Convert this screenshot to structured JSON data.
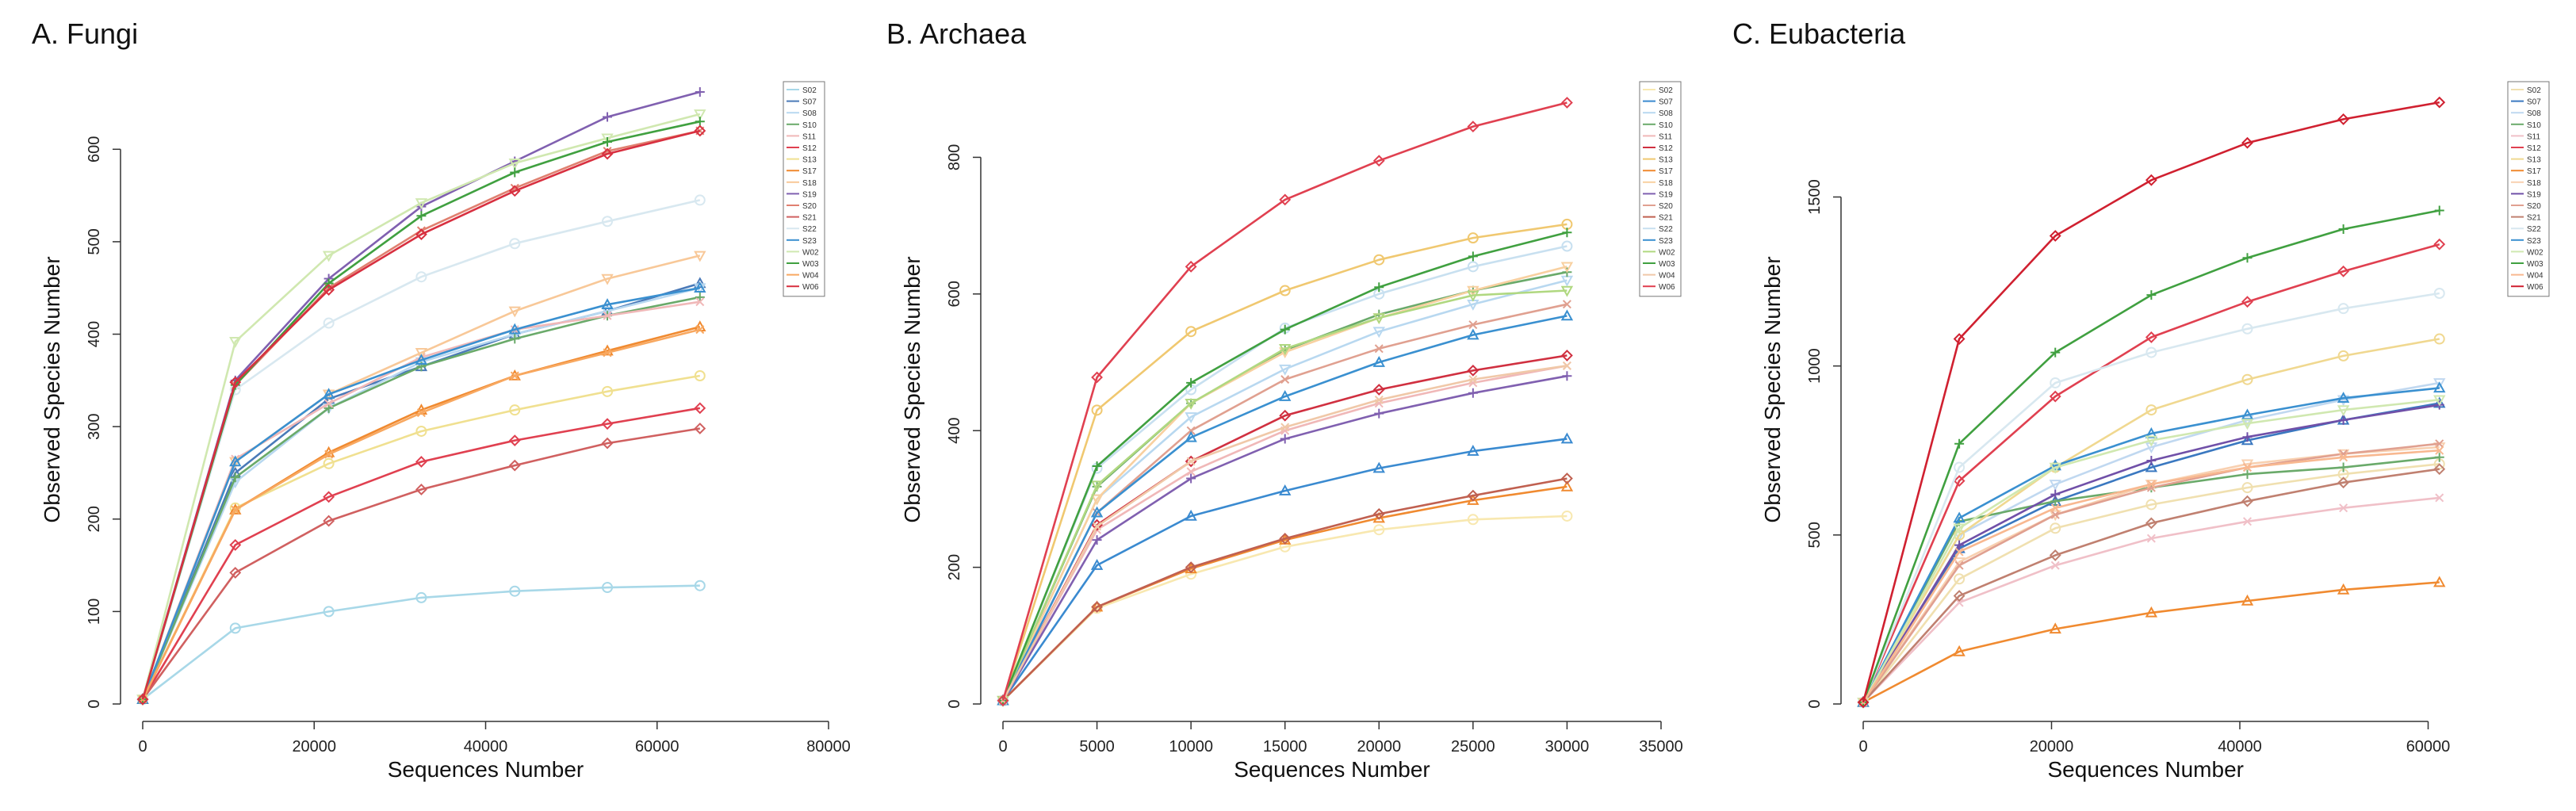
{
  "series_names": [
    "S02",
    "S07",
    "S08",
    "S10",
    "S11",
    "S12",
    "S13",
    "S17",
    "S18",
    "S19",
    "S20",
    "S21",
    "S22",
    "S23",
    "W02",
    "W03",
    "W04",
    "W06"
  ],
  "chart_data": [
    {
      "type": "line",
      "title": "A. Fungi",
      "xlabel": "Sequences Number",
      "ylabel": "Observed Species Number",
      "xlim": [
        0,
        80000
      ],
      "ylim": [
        0,
        680
      ],
      "xticks": [
        0,
        20000,
        40000,
        60000,
        80000
      ],
      "yticks": [
        0,
        100,
        200,
        300,
        400,
        500,
        600
      ],
      "legend_position": "top-right",
      "x": [
        0,
        10800,
        21700,
        32500,
        43400,
        54200,
        65000
      ],
      "series": [
        {
          "name": "S02",
          "color": "#a8d8e8",
          "values": [
            5,
            82,
            100,
            115,
            122,
            126,
            128
          ]
        },
        {
          "name": "S07",
          "color": "#4a7ab8",
          "values": [
            5,
            250,
            330,
            365,
            400,
            425,
            455
          ]
        },
        {
          "name": "S08",
          "color": "#b8d8f0",
          "values": [
            5,
            240,
            320,
            370,
            400,
            425,
            450
          ]
        },
        {
          "name": "S10",
          "color": "#6aaa6a",
          "values": [
            5,
            245,
            320,
            365,
            395,
            420,
            440
          ]
        },
        {
          "name": "S11",
          "color": "#f0b8b8",
          "values": [
            5,
            265,
            325,
            375,
            405,
            420,
            435
          ]
        },
        {
          "name": "S12",
          "color": "#e04050",
          "values": [
            5,
            172,
            224,
            262,
            285,
            303,
            320
          ]
        },
        {
          "name": "S13",
          "color": "#f0e090",
          "values": [
            5,
            212,
            260,
            295,
            318,
            338,
            355
          ]
        },
        {
          "name": "S17",
          "color": "#f08a30",
          "values": [
            5,
            210,
            272,
            318,
            355,
            382,
            408
          ]
        },
        {
          "name": "S18",
          "color": "#f8c898",
          "values": [
            5,
            262,
            335,
            380,
            425,
            460,
            485
          ]
        },
        {
          "name": "S19",
          "color": "#8060b0",
          "values": [
            5,
            350,
            460,
            538,
            587,
            635,
            662
          ]
        },
        {
          "name": "S20",
          "color": "#e08070",
          "values": [
            5,
            345,
            450,
            512,
            558,
            598,
            620
          ]
        },
        {
          "name": "S21",
          "color": "#d06060",
          "values": [
            5,
            142,
            198,
            232,
            258,
            282,
            298
          ]
        },
        {
          "name": "S22",
          "color": "#d8e8f0",
          "values": [
            5,
            340,
            412,
            462,
            498,
            522,
            545
          ]
        },
        {
          "name": "S23",
          "color": "#3a90d0",
          "values": [
            5,
            262,
            335,
            372,
            405,
            432,
            450
          ]
        },
        {
          "name": "W02",
          "color": "#d0e8b0",
          "values": [
            5,
            392,
            485,
            542,
            585,
            612,
            638
          ]
        },
        {
          "name": "W03",
          "color": "#40a040",
          "values": [
            5,
            345,
            455,
            528,
            575,
            608,
            630
          ]
        },
        {
          "name": "W04",
          "color": "#f8a860",
          "values": [
            5,
            210,
            270,
            315,
            355,
            380,
            405
          ]
        },
        {
          "name": "W06",
          "color": "#d83040",
          "values": [
            5,
            348,
            448,
            508,
            555,
            595,
            620
          ]
        }
      ]
    },
    {
      "type": "line",
      "title": "B. Archaea",
      "xlabel": "Sequences Number",
      "ylabel": "Observed Species Number",
      "xlim": [
        0,
        35000
      ],
      "ylim": [
        0,
        920
      ],
      "xticks": [
        0,
        5000,
        10000,
        15000,
        20000,
        25000,
        30000,
        35000
      ],
      "yticks": [
        0,
        200,
        400,
        600,
        800
      ],
      "legend_position": "top-right",
      "x": [
        0,
        5000,
        10000,
        15000,
        20000,
        25000,
        30000
      ],
      "series": [
        {
          "name": "S02",
          "color": "#f8e8b0",
          "values": [
            5,
            140,
            190,
            230,
            255,
            270,
            275
          ]
        },
        {
          "name": "S07",
          "color": "#3a8ad0",
          "values": [
            5,
            203,
            275,
            312,
            345,
            370,
            388
          ]
        },
        {
          "name": "S08",
          "color": "#b8d8f0",
          "values": [
            5,
            300,
            420,
            490,
            545,
            585,
            620
          ]
        },
        {
          "name": "S10",
          "color": "#6aaa6a",
          "values": [
            5,
            318,
            440,
            518,
            570,
            605,
            632
          ]
        },
        {
          "name": "S11",
          "color": "#f0b8b8",
          "values": [
            5,
            255,
            340,
            400,
            440,
            470,
            495
          ]
        },
        {
          "name": "S12",
          "color": "#d03040",
          "values": [
            5,
            262,
            355,
            422,
            460,
            488,
            510
          ]
        },
        {
          "name": "S13",
          "color": "#f0c870",
          "values": [
            5,
            430,
            545,
            605,
            650,
            682,
            702
          ]
        },
        {
          "name": "S17",
          "color": "#f08a30",
          "values": [
            5,
            142,
            198,
            240,
            272,
            298,
            318
          ]
        },
        {
          "name": "S18",
          "color": "#f8d0a0",
          "values": [
            5,
            300,
            440,
            515,
            565,
            605,
            640
          ]
        },
        {
          "name": "S19",
          "color": "#8060b0",
          "values": [
            5,
            240,
            330,
            388,
            425,
            455,
            480
          ]
        },
        {
          "name": "S20",
          "color": "#e0a090",
          "values": [
            5,
            280,
            400,
            475,
            520,
            555,
            585
          ]
        },
        {
          "name": "S21",
          "color": "#c06050",
          "values": [
            5,
            142,
            200,
            242,
            278,
            305,
            330
          ]
        },
        {
          "name": "S22",
          "color": "#c8e0f0",
          "values": [
            5,
            345,
            460,
            550,
            600,
            640,
            670
          ]
        },
        {
          "name": "S23",
          "color": "#3a90d0",
          "values": [
            5,
            280,
            390,
            450,
            500,
            540,
            568
          ]
        },
        {
          "name": "W02",
          "color": "#b0d880",
          "values": [
            5,
            320,
            440,
            520,
            565,
            598,
            605
          ]
        },
        {
          "name": "W03",
          "color": "#40a040",
          "values": [
            5,
            348,
            470,
            548,
            610,
            655,
            690
          ]
        },
        {
          "name": "W04",
          "color": "#f0c8a8",
          "values": [
            5,
            260,
            355,
            405,
            445,
            475,
            495
          ]
        },
        {
          "name": "W06",
          "color": "#e04050",
          "values": [
            5,
            478,
            640,
            738,
            795,
            845,
            880
          ]
        }
      ]
    },
    {
      "type": "line",
      "title": "C. Eubacteria",
      "xlabel": "Sequences Number",
      "ylabel": "Observed Species Number",
      "xlim": [
        0,
        72000
      ],
      "ylim": [
        0,
        1860
      ],
      "xticks": [
        0,
        20000,
        40000,
        60000
      ],
      "yticks": [
        0,
        500,
        1000,
        1500
      ],
      "legend_position": "top-right",
      "x": [
        0,
        10200,
        20400,
        30600,
        40800,
        51000,
        61200
      ],
      "series": [
        {
          "name": "S02",
          "color": "#f0e0b0",
          "values": [
            5,
            370,
            520,
            590,
            640,
            680,
            710
          ]
        },
        {
          "name": "S07",
          "color": "#3a78c0",
          "values": [
            5,
            460,
            600,
            700,
            780,
            840,
            890
          ]
        },
        {
          "name": "S08",
          "color": "#c0d8f0",
          "values": [
            5,
            500,
            650,
            760,
            840,
            900,
            950
          ]
        },
        {
          "name": "S10",
          "color": "#6aaa6a",
          "values": [
            5,
            540,
            600,
            640,
            680,
            700,
            730
          ]
        },
        {
          "name": "S11",
          "color": "#f0c0c8",
          "values": [
            5,
            300,
            410,
            490,
            540,
            580,
            610
          ]
        },
        {
          "name": "S12",
          "color": "#e04050",
          "values": [
            5,
            660,
            910,
            1085,
            1190,
            1280,
            1360
          ]
        },
        {
          "name": "S13",
          "color": "#f0d890",
          "values": [
            5,
            500,
            700,
            870,
            960,
            1030,
            1080
          ]
        },
        {
          "name": "S17",
          "color": "#f08a30",
          "values": [
            5,
            155,
            222,
            270,
            305,
            338,
            360
          ]
        },
        {
          "name": "S18",
          "color": "#f8d0b0",
          "values": [
            5,
            420,
            560,
            650,
            710,
            740,
            760
          ]
        },
        {
          "name": "S19",
          "color": "#7050a8",
          "values": [
            5,
            470,
            620,
            720,
            790,
            840,
            885
          ]
        },
        {
          "name": "S20",
          "color": "#e0a090",
          "values": [
            5,
            410,
            560,
            640,
            700,
            740,
            770
          ]
        },
        {
          "name": "S21",
          "color": "#c08070",
          "values": [
            5,
            320,
            440,
            535,
            600,
            655,
            695
          ]
        },
        {
          "name": "S22",
          "color": "#d8e8f0",
          "values": [
            5,
            700,
            950,
            1040,
            1110,
            1170,
            1215
          ]
        },
        {
          "name": "S23",
          "color": "#3a90d0",
          "values": [
            5,
            550,
            705,
            800,
            855,
            905,
            935
          ]
        },
        {
          "name": "W02",
          "color": "#d0e8b0",
          "values": [
            5,
            520,
            700,
            780,
            830,
            870,
            900
          ]
        },
        {
          "name": "W03",
          "color": "#40a040",
          "values": [
            5,
            770,
            1040,
            1210,
            1320,
            1405,
            1460
          ]
        },
        {
          "name": "W04",
          "color": "#f8b890",
          "values": [
            5,
            450,
            580,
            650,
            700,
            730,
            750
          ]
        },
        {
          "name": "W06",
          "color": "#d02030",
          "values": [
            5,
            1080,
            1385,
            1550,
            1660,
            1730,
            1780
          ]
        }
      ]
    }
  ]
}
